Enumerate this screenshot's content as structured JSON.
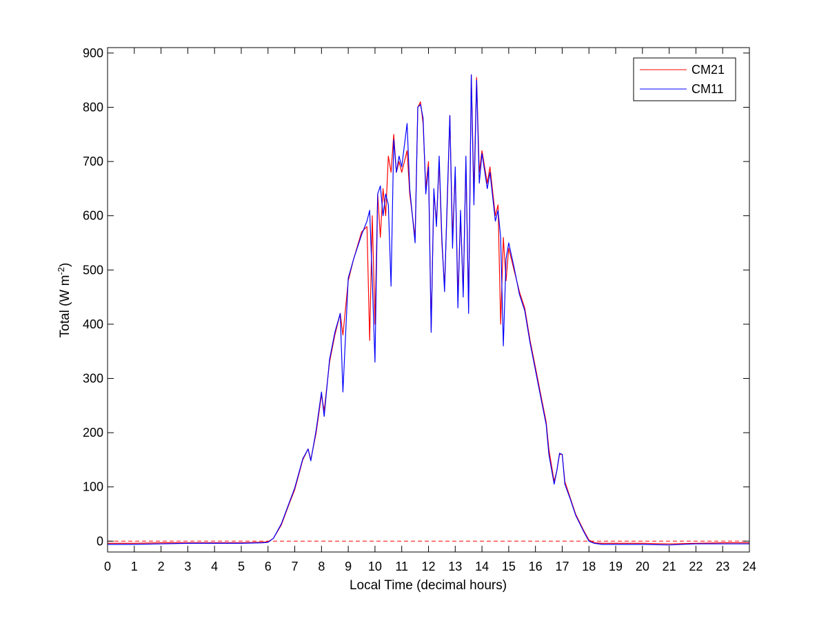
{
  "chart_data": {
    "type": "line",
    "xlabel": "Local Time (decimal hours)",
    "ylabel": {
      "main": "Total (W m",
      "sup": "-2",
      "close": ")"
    },
    "xlim": [
      0,
      24
    ],
    "ylim": [
      -20,
      910
    ],
    "xticks": [
      0,
      1,
      2,
      3,
      4,
      5,
      6,
      7,
      8,
      9,
      10,
      11,
      12,
      13,
      14,
      15,
      16,
      17,
      18,
      19,
      20,
      21,
      22,
      23,
      24
    ],
    "yticks": [
      0,
      100,
      200,
      300,
      400,
      500,
      600,
      700,
      800,
      900
    ],
    "grid": false,
    "legend_position": "top-right",
    "reference_line": {
      "y": 0,
      "style": "dashed",
      "color": "#ff0000"
    },
    "series": [
      {
        "name": "CM21",
        "color": "#ff0000",
        "points": [
          [
            0,
            -4
          ],
          [
            1,
            -4
          ],
          [
            2,
            -3
          ],
          [
            3,
            -3
          ],
          [
            4,
            -3
          ],
          [
            5,
            -3
          ],
          [
            5.8,
            -2
          ],
          [
            6.0,
            -1
          ],
          [
            6.2,
            5
          ],
          [
            6.5,
            30
          ],
          [
            6.8,
            70
          ],
          [
            7.0,
            95
          ],
          [
            7.3,
            150
          ],
          [
            7.5,
            170
          ],
          [
            7.6,
            150
          ],
          [
            7.8,
            200
          ],
          [
            8.0,
            270
          ],
          [
            8.1,
            240
          ],
          [
            8.3,
            330
          ],
          [
            8.5,
            380
          ],
          [
            8.7,
            420
          ],
          [
            8.8,
            380
          ],
          [
            9.0,
            480
          ],
          [
            9.2,
            520
          ],
          [
            9.5,
            570
          ],
          [
            9.7,
            580
          ],
          [
            9.8,
            370
          ],
          [
            9.9,
            600
          ],
          [
            10.0,
            400
          ],
          [
            10.1,
            640
          ],
          [
            10.2,
            560
          ],
          [
            10.3,
            650
          ],
          [
            10.4,
            600
          ],
          [
            10.5,
            710
          ],
          [
            10.6,
            680
          ],
          [
            10.7,
            750
          ],
          [
            10.8,
            680
          ],
          [
            10.9,
            700
          ],
          [
            11.0,
            680
          ],
          [
            11.2,
            720
          ],
          [
            11.3,
            640
          ],
          [
            11.5,
            560
          ],
          [
            11.6,
            800
          ],
          [
            11.7,
            810
          ],
          [
            11.8,
            770
          ],
          [
            11.9,
            650
          ],
          [
            12.0,
            700
          ],
          [
            12.1,
            390
          ],
          [
            12.2,
            640
          ],
          [
            12.3,
            590
          ],
          [
            12.4,
            700
          ],
          [
            12.5,
            550
          ],
          [
            12.6,
            470
          ],
          [
            12.7,
            620
          ],
          [
            12.8,
            785
          ],
          [
            12.9,
            560
          ],
          [
            13.0,
            680
          ],
          [
            13.1,
            450
          ],
          [
            13.2,
            600
          ],
          [
            13.3,
            460
          ],
          [
            13.4,
            700
          ],
          [
            13.5,
            430
          ],
          [
            13.6,
            860
          ],
          [
            13.7,
            640
          ],
          [
            13.8,
            855
          ],
          [
            13.9,
            680
          ],
          [
            14.0,
            720
          ],
          [
            14.2,
            660
          ],
          [
            14.3,
            690
          ],
          [
            14.5,
            600
          ],
          [
            14.6,
            620
          ],
          [
            14.7,
            400
          ],
          [
            14.8,
            560
          ],
          [
            14.9,
            480
          ],
          [
            15.0,
            540
          ],
          [
            15.2,
            500
          ],
          [
            15.4,
            460
          ],
          [
            15.6,
            430
          ],
          [
            15.8,
            370
          ],
          [
            16.0,
            320
          ],
          [
            16.2,
            270
          ],
          [
            16.4,
            220
          ],
          [
            16.5,
            170
          ],
          [
            16.7,
            110
          ],
          [
            16.8,
            130
          ],
          [
            16.9,
            160
          ],
          [
            17.0,
            160
          ],
          [
            17.1,
            110
          ],
          [
            17.3,
            80
          ],
          [
            17.5,
            50
          ],
          [
            17.8,
            20
          ],
          [
            18.0,
            2
          ],
          [
            18.2,
            -3
          ],
          [
            18.5,
            -4
          ],
          [
            19,
            -4
          ],
          [
            20,
            -4
          ],
          [
            21,
            -5
          ],
          [
            22,
            -4
          ],
          [
            23,
            -3
          ],
          [
            24,
            -3
          ]
        ]
      },
      {
        "name": "CM11",
        "color": "#0000ff",
        "points": [
          [
            0,
            -6
          ],
          [
            1,
            -6
          ],
          [
            2,
            -5
          ],
          [
            3,
            -4
          ],
          [
            4,
            -4
          ],
          [
            5,
            -4
          ],
          [
            5.8,
            -3
          ],
          [
            6.0,
            -2
          ],
          [
            6.2,
            5
          ],
          [
            6.5,
            32
          ],
          [
            6.8,
            72
          ],
          [
            7.0,
            98
          ],
          [
            7.3,
            152
          ],
          [
            7.5,
            170
          ],
          [
            7.6,
            148
          ],
          [
            7.8,
            205
          ],
          [
            8.0,
            275
          ],
          [
            8.1,
            230
          ],
          [
            8.3,
            335
          ],
          [
            8.5,
            385
          ],
          [
            8.7,
            420
          ],
          [
            8.8,
            275
          ],
          [
            9.0,
            485
          ],
          [
            9.2,
            520
          ],
          [
            9.5,
            565
          ],
          [
            9.7,
            590
          ],
          [
            9.8,
            610
          ],
          [
            9.9,
            480
          ],
          [
            10.0,
            330
          ],
          [
            10.1,
            640
          ],
          [
            10.2,
            655
          ],
          [
            10.3,
            600
          ],
          [
            10.4,
            640
          ],
          [
            10.5,
            620
          ],
          [
            10.6,
            470
          ],
          [
            10.7,
            740
          ],
          [
            10.8,
            680
          ],
          [
            10.9,
            710
          ],
          [
            11.0,
            690
          ],
          [
            11.2,
            770
          ],
          [
            11.3,
            650
          ],
          [
            11.5,
            550
          ],
          [
            11.6,
            800
          ],
          [
            11.7,
            805
          ],
          [
            11.8,
            780
          ],
          [
            11.9,
            640
          ],
          [
            12.0,
            690
          ],
          [
            12.1,
            385
          ],
          [
            12.2,
            650
          ],
          [
            12.3,
            580
          ],
          [
            12.4,
            710
          ],
          [
            12.5,
            560
          ],
          [
            12.6,
            460
          ],
          [
            12.7,
            630
          ],
          [
            12.8,
            785
          ],
          [
            12.9,
            540
          ],
          [
            13.0,
            690
          ],
          [
            13.1,
            430
          ],
          [
            13.2,
            610
          ],
          [
            13.3,
            450
          ],
          [
            13.4,
            710
          ],
          [
            13.5,
            420
          ],
          [
            13.6,
            860
          ],
          [
            13.7,
            620
          ],
          [
            13.8,
            850
          ],
          [
            13.9,
            660
          ],
          [
            14.0,
            715
          ],
          [
            14.2,
            650
          ],
          [
            14.3,
            680
          ],
          [
            14.5,
            590
          ],
          [
            14.6,
            610
          ],
          [
            14.7,
            560
          ],
          [
            14.8,
            360
          ],
          [
            14.9,
            520
          ],
          [
            15.0,
            550
          ],
          [
            15.2,
            505
          ],
          [
            15.4,
            455
          ],
          [
            15.6,
            425
          ],
          [
            15.8,
            365
          ],
          [
            16.0,
            315
          ],
          [
            16.2,
            265
          ],
          [
            16.4,
            215
          ],
          [
            16.5,
            160
          ],
          [
            16.7,
            105
          ],
          [
            16.8,
            130
          ],
          [
            16.9,
            162
          ],
          [
            17.0,
            160
          ],
          [
            17.1,
            105
          ],
          [
            17.3,
            78
          ],
          [
            17.5,
            48
          ],
          [
            17.8,
            18
          ],
          [
            18.0,
            0
          ],
          [
            18.2,
            -4
          ],
          [
            18.5,
            -6
          ],
          [
            19,
            -6
          ],
          [
            20,
            -6
          ],
          [
            21,
            -7
          ],
          [
            22,
            -5
          ],
          [
            23,
            -5
          ],
          [
            24,
            -5
          ]
        ]
      }
    ]
  }
}
